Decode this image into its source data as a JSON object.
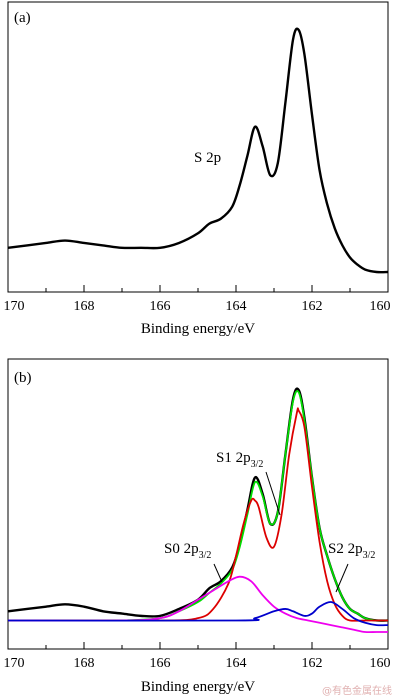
{
  "watermark": "@有色金属在线",
  "chart_data": [
    {
      "type": "line",
      "panel_label": "(a)",
      "xlabel": "Binding energy/eV",
      "ylabel": "",
      "xlim": [
        170,
        160
      ],
      "x_reversed": true,
      "x_ticks": [
        "170",
        "168",
        "166",
        "164",
        "162",
        "160"
      ],
      "annotations": [
        {
          "text": "S 2p",
          "x": 164.8,
          "y": 0.53
        }
      ],
      "series": [
        {
          "color": "#000000",
          "x": [
            170,
            169.5,
            169,
            168.5,
            168,
            167.5,
            167,
            166.5,
            166,
            165.5,
            165,
            164.7,
            164.4,
            164.1,
            163.9,
            163.7,
            163.5,
            163.3,
            163.1,
            162.9,
            162.7,
            162.5,
            162.35,
            162.2,
            162.0,
            161.8,
            161.6,
            161.4,
            161.2,
            161.0,
            160.8,
            160.6,
            160.3,
            160
          ],
          "y": [
            0.1,
            0.11,
            0.12,
            0.13,
            0.12,
            0.11,
            0.1,
            0.1,
            0.1,
            0.12,
            0.16,
            0.2,
            0.22,
            0.27,
            0.36,
            0.48,
            0.6,
            0.52,
            0.4,
            0.45,
            0.7,
            0.96,
            1.0,
            0.9,
            0.65,
            0.42,
            0.28,
            0.18,
            0.11,
            0.06,
            0.03,
            0.01,
            0.0,
            0.0
          ]
        }
      ]
    },
    {
      "type": "line",
      "panel_label": "(b)",
      "xlabel": "Binding energy/eV",
      "ylabel": "",
      "xlim": [
        170,
        160
      ],
      "x_reversed": true,
      "x_ticks": [
        "170",
        "168",
        "166",
        "164",
        "162",
        "160"
      ],
      "labels": {
        "s0": {
          "base": "S0 2p",
          "sub": "3/2"
        },
        "s1": {
          "base": "S1 2p",
          "sub": "3/2"
        },
        "s2": {
          "base": "S2 2p",
          "sub": "3/2"
        }
      },
      "series": [
        {
          "color": "#000000",
          "x": [
            170,
            169.5,
            169,
            168.5,
            168,
            167.5,
            167,
            166.5,
            166,
            165.5,
            165,
            164.7,
            164.4,
            164.1,
            163.9,
            163.7,
            163.5,
            163.3,
            163.1,
            162.9,
            162.7,
            162.5,
            162.35,
            162.2,
            162.0,
            161.8,
            161.6,
            161.4,
            161.2,
            161.0,
            160.8,
            160.6,
            160.3,
            160
          ],
          "y": [
            0.04,
            0.05,
            0.06,
            0.07,
            0.06,
            0.04,
            0.03,
            0.02,
            0.02,
            0.05,
            0.09,
            0.14,
            0.17,
            0.23,
            0.33,
            0.48,
            0.62,
            0.55,
            0.42,
            0.47,
            0.72,
            0.96,
            1.0,
            0.88,
            0.62,
            0.4,
            0.28,
            0.18,
            0.1,
            0.05,
            0.03,
            0.01,
            0.0,
            0.0
          ]
        },
        {
          "color": "#00dd00",
          "x": [
            170,
            169,
            168,
            167,
            166,
            165.5,
            165,
            164.7,
            164.4,
            164.1,
            163.9,
            163.7,
            163.5,
            163.3,
            163.1,
            162.9,
            162.7,
            162.5,
            162.35,
            162.2,
            162.0,
            161.8,
            161.6,
            161.4,
            161.2,
            161.0,
            160.8,
            160.6,
            160.3,
            160
          ],
          "y": [
            0.0,
            0.0,
            0.0,
            0.0,
            0.01,
            0.04,
            0.08,
            0.12,
            0.16,
            0.22,
            0.32,
            0.46,
            0.6,
            0.54,
            0.42,
            0.47,
            0.72,
            0.95,
            0.99,
            0.87,
            0.62,
            0.4,
            0.28,
            0.18,
            0.1,
            0.05,
            0.03,
            0.01,
            0.0,
            0.0
          ]
        },
        {
          "color": "#dd0000",
          "x": [
            170,
            166,
            165,
            164.6,
            164.2,
            164.0,
            163.8,
            163.6,
            163.5,
            163.4,
            163.2,
            163.0,
            162.8,
            162.6,
            162.4,
            162.35,
            162.2,
            162.0,
            161.8,
            161.6,
            161.4,
            161.2,
            161.0,
            160.6,
            160
          ],
          "y": [
            0.0,
            0.0,
            0.01,
            0.05,
            0.16,
            0.28,
            0.42,
            0.52,
            0.52,
            0.49,
            0.36,
            0.32,
            0.46,
            0.72,
            0.9,
            0.91,
            0.84,
            0.58,
            0.34,
            0.17,
            0.07,
            0.02,
            0.0,
            0.0,
            0.0
          ]
        },
        {
          "color": "#ee00ee",
          "x": [
            170,
            167,
            166,
            165.5,
            165.0,
            164.6,
            164.2,
            163.9,
            163.6,
            163.3,
            163.0,
            162.7,
            162.4,
            162.1,
            161.8,
            161.5,
            161.2,
            160.9,
            160.6,
            160.3,
            160
          ],
          "y": [
            0.0,
            0.0,
            0.01,
            0.04,
            0.09,
            0.13,
            0.17,
            0.19,
            0.17,
            0.11,
            0.06,
            0.03,
            0.01,
            0.0,
            -0.01,
            -0.02,
            -0.03,
            -0.04,
            -0.05,
            -0.05,
            -0.05
          ]
        },
        {
          "color": "#0000cc",
          "x": [
            170,
            164,
            163.5,
            163.0,
            162.7,
            162.5,
            162.2,
            162.0,
            161.8,
            161.5,
            161.2,
            160.9,
            160.6,
            160.3,
            160
          ],
          "y": [
            0.0,
            0.0,
            0.01,
            0.04,
            0.05,
            0.04,
            0.02,
            0.03,
            0.06,
            0.08,
            0.05,
            0.01,
            -0.01,
            -0.02,
            -0.02
          ]
        }
      ]
    }
  ]
}
